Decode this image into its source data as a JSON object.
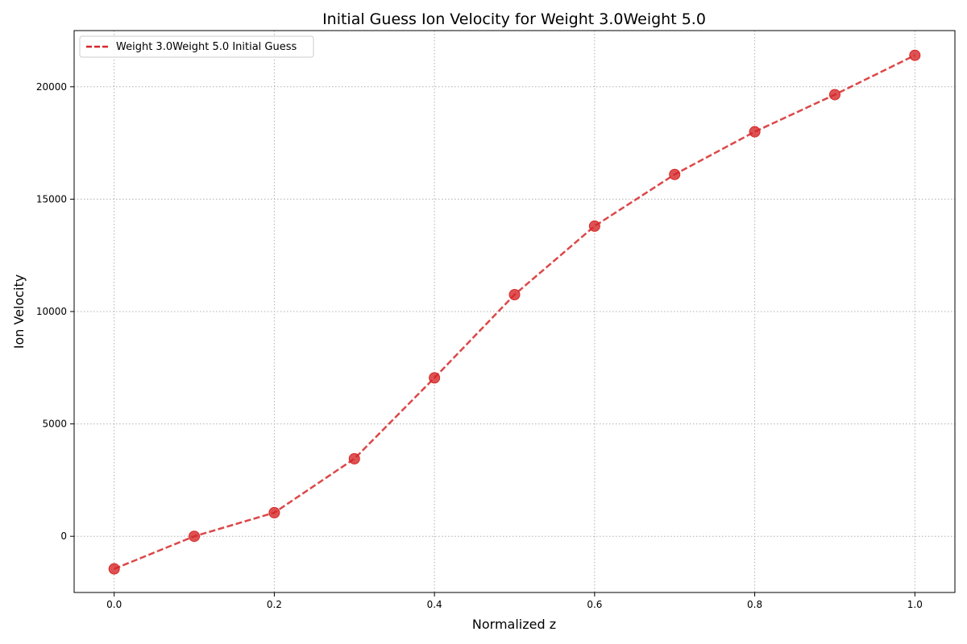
{
  "chart_data": {
    "type": "line",
    "title": "Initial Guess Ion Velocity for Weight 3.0Weight 5.0",
    "xlabel": "Normalized z",
    "ylabel": "Ion Velocity",
    "xlim": [
      -0.05,
      1.05
    ],
    "ylim": [
      -2500,
      22500
    ],
    "x_ticks": [
      0.0,
      0.2,
      0.4,
      0.6,
      0.8,
      1.0
    ],
    "x_tick_labels": [
      "0.0",
      "0.2",
      "0.4",
      "0.6",
      "0.8",
      "1.0"
    ],
    "y_ticks": [
      0,
      5000,
      10000,
      15000,
      20000
    ],
    "y_tick_labels": [
      "0",
      "5000",
      "10000",
      "15000",
      "20000"
    ],
    "grid": true,
    "grid_style": "dotted",
    "legend_position": "upper-left",
    "series": [
      {
        "name": "Weight 3.0Weight 5.0 Initial Guess",
        "color": "#d62728",
        "line_style": "dashed",
        "marker": "circle",
        "x": [
          0.0,
          0.1,
          0.2,
          0.3,
          0.4,
          0.5,
          0.6,
          0.7,
          0.8,
          0.9,
          1.0
        ],
        "y": [
          -1450,
          0,
          1050,
          3450,
          7050,
          10750,
          13800,
          16100,
          18000,
          19650,
          21400
        ]
      }
    ]
  }
}
